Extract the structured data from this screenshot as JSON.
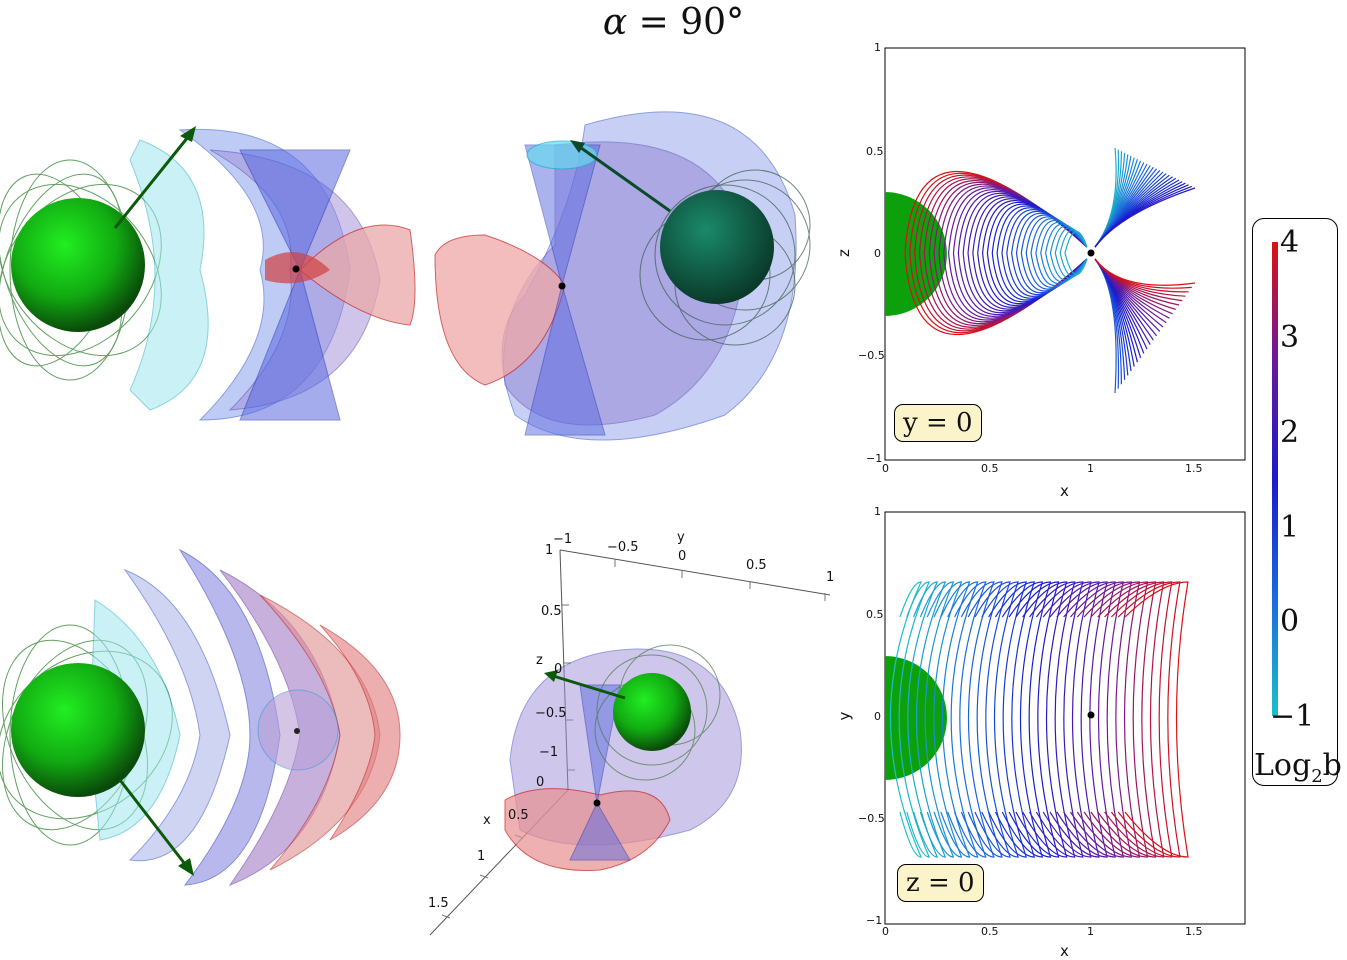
{
  "title": {
    "symbol": "α",
    "equals": " = 90°"
  },
  "panel_top_right": {
    "tag": "y = 0",
    "xlabel": "x",
    "ylabel": "z",
    "xticks": [
      "0",
      "0.5",
      "1",
      "1.5"
    ],
    "yticks": [
      "1",
      "0.5",
      "0",
      "−0.5",
      "−1"
    ]
  },
  "panel_bottom_right": {
    "tag": "z = 0",
    "xlabel": "x",
    "ylabel": "y",
    "xticks": [
      "0",
      "0.5",
      "1",
      "1.5"
    ],
    "yticks": [
      "1",
      "0.5",
      "0",
      "−0.5",
      "−1"
    ]
  },
  "colorbar": {
    "ticks": [
      "4",
      "3",
      "2",
      "1",
      "0",
      "−1"
    ],
    "label_main": "Log",
    "label_sub": "2",
    "label_end": "b",
    "colors": [
      "#dd1111",
      "#6a1a9a",
      "#1a1acc",
      "#1a6adf",
      "#1cc0c8"
    ]
  },
  "axes3d": {
    "y_label": "y",
    "y_ticks": [
      "−1",
      "−0.5",
      "0",
      "0.5",
      "1"
    ],
    "z_label": "z",
    "z_ticks": [
      "1",
      "0.5",
      "0",
      "−0.5",
      "−1"
    ],
    "x_label": "x",
    "x_ticks": [
      "0",
      "0.5",
      "1",
      "1.5"
    ]
  }
}
